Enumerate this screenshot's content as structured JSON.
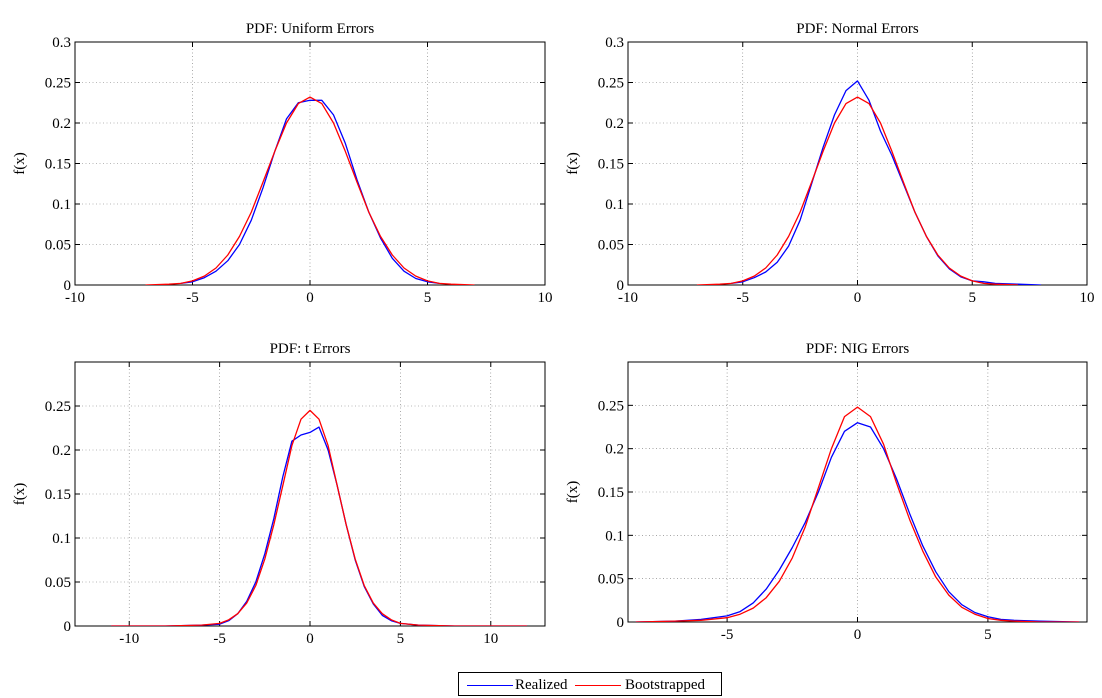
{
  "legend": {
    "items": [
      {
        "label": "Realized",
        "color": "#0000ff"
      },
      {
        "label": "Bootstrapped",
        "color": "#ff0000"
      }
    ]
  },
  "chart_data": [
    {
      "type": "line",
      "title": "PDF: Uniform Errors",
      "ylabel": "f(x)",
      "xlim": [
        -10,
        10
      ],
      "ylim": [
        0,
        0.3
      ],
      "xticks": [
        -10,
        -5,
        0,
        5,
        10
      ],
      "yticks": [
        0,
        0.05,
        0.1,
        0.15,
        0.2,
        0.25,
        0.3
      ],
      "grid": true,
      "series": [
        {
          "name": "Realized",
          "color": "#0000ff",
          "x": [
            -5.5,
            -5,
            -4.5,
            -4,
            -3.5,
            -3,
            -2.5,
            -2,
            -1.5,
            -1,
            -0.5,
            0,
            0.5,
            1,
            1.5,
            2,
            2.5,
            3,
            3.5,
            4,
            4.5,
            5,
            5.5
          ],
          "y": [
            0.002,
            0.004,
            0.009,
            0.017,
            0.03,
            0.05,
            0.08,
            0.12,
            0.165,
            0.205,
            0.225,
            0.228,
            0.228,
            0.21,
            0.175,
            0.13,
            0.09,
            0.058,
            0.033,
            0.017,
            0.008,
            0.004,
            0.002
          ]
        },
        {
          "name": "Bootstrapped",
          "color": "#ff0000",
          "x": [
            -7,
            -6,
            -5.5,
            -5,
            -4.5,
            -4,
            -3.5,
            -3,
            -2.5,
            -2,
            -1.5,
            -1,
            -0.5,
            0,
            0.5,
            1,
            1.5,
            2,
            2.5,
            3,
            3.5,
            4,
            4.5,
            5,
            5.5,
            6,
            7
          ],
          "y": [
            0,
            0.001,
            0.002,
            0.005,
            0.011,
            0.021,
            0.037,
            0.06,
            0.09,
            0.127,
            0.165,
            0.2,
            0.224,
            0.232,
            0.224,
            0.2,
            0.165,
            0.127,
            0.09,
            0.06,
            0.037,
            0.021,
            0.011,
            0.005,
            0.002,
            0.001,
            0
          ]
        }
      ]
    },
    {
      "type": "line",
      "title": "PDF: Normal Errors",
      "ylabel": "f(x)",
      "xlim": [
        -10,
        10
      ],
      "ylim": [
        0,
        0.3
      ],
      "xticks": [
        -10,
        -5,
        0,
        5,
        10
      ],
      "yticks": [
        0,
        0.05,
        0.1,
        0.15,
        0.2,
        0.25,
        0.3
      ],
      "grid": true,
      "series": [
        {
          "name": "Realized",
          "color": "#0000ff",
          "x": [
            -5.5,
            -5,
            -4.5,
            -4,
            -3.5,
            -3,
            -2.5,
            -2,
            -1.5,
            -1,
            -0.5,
            0,
            0.5,
            1,
            1.5,
            2,
            2.5,
            3,
            3.5,
            4,
            4.5,
            5,
            5.5,
            6,
            7,
            8
          ],
          "y": [
            0.002,
            0.004,
            0.009,
            0.016,
            0.028,
            0.048,
            0.08,
            0.125,
            0.17,
            0.21,
            0.24,
            0.252,
            0.228,
            0.19,
            0.16,
            0.125,
            0.09,
            0.06,
            0.036,
            0.02,
            0.01,
            0.005,
            0.004,
            0.002,
            0.001,
            0
          ]
        },
        {
          "name": "Bootstrapped",
          "color": "#ff0000",
          "x": [
            -7,
            -6,
            -5.5,
            -5,
            -4.5,
            -4,
            -3.5,
            -3,
            -2.5,
            -2,
            -1.5,
            -1,
            -0.5,
            0,
            0.5,
            1,
            1.5,
            2,
            2.5,
            3,
            3.5,
            4,
            4.5,
            5,
            5.5,
            6,
            7
          ],
          "y": [
            0,
            0.001,
            0.002,
            0.005,
            0.011,
            0.021,
            0.037,
            0.06,
            0.09,
            0.127,
            0.165,
            0.2,
            0.224,
            0.232,
            0.224,
            0.2,
            0.165,
            0.127,
            0.09,
            0.06,
            0.037,
            0.021,
            0.011,
            0.005,
            0.002,
            0.001,
            0
          ]
        }
      ]
    },
    {
      "type": "line",
      "title": "PDF: t Errors",
      "ylabel": "f(x)",
      "xlim": [
        -13,
        13
      ],
      "ylim": [
        0,
        0.3
      ],
      "xticks": [
        -10,
        -5,
        0,
        5,
        10
      ],
      "yticks": [
        0,
        0.05,
        0.1,
        0.15,
        0.2,
        0.25
      ],
      "grid": true,
      "series": [
        {
          "name": "Realized",
          "color": "#0000ff",
          "x": [
            -11,
            -8,
            -6,
            -5,
            -4.5,
            -4,
            -3.5,
            -3,
            -2.5,
            -2,
            -1.5,
            -1,
            -0.5,
            0,
            0.5,
            1,
            1.5,
            2,
            2.5,
            3,
            3.5,
            4,
            4.5,
            5,
            6,
            8,
            12
          ],
          "y": [
            0,
            0,
            0.001,
            0.002,
            0.006,
            0.014,
            0.028,
            0.05,
            0.082,
            0.122,
            0.17,
            0.21,
            0.217,
            0.22,
            0.226,
            0.2,
            0.16,
            0.115,
            0.075,
            0.045,
            0.025,
            0.012,
            0.006,
            0.003,
            0.001,
            0,
            0
          ]
        },
        {
          "name": "Bootstrapped",
          "color": "#ff0000",
          "x": [
            -11,
            -8,
            -6,
            -5,
            -4.5,
            -4,
            -3.5,
            -3,
            -2.5,
            -2,
            -1.5,
            -1,
            -0.5,
            0,
            0.5,
            1,
            1.5,
            2,
            2.5,
            3,
            3.5,
            4,
            4.5,
            5,
            6,
            8,
            12
          ],
          "y": [
            0,
            0,
            0.001,
            0.003,
            0.007,
            0.014,
            0.026,
            0.046,
            0.076,
            0.115,
            0.16,
            0.205,
            0.235,
            0.245,
            0.235,
            0.205,
            0.16,
            0.115,
            0.076,
            0.046,
            0.026,
            0.014,
            0.007,
            0.003,
            0.001,
            0,
            0
          ]
        }
      ]
    },
    {
      "type": "line",
      "title": "PDF: NIG Errors",
      "ylabel": "f(x)",
      "xlim": [
        -8.8,
        8.8
      ],
      "ylim": [
        0,
        0.3
      ],
      "xticks": [
        -5,
        0,
        5
      ],
      "yticks": [
        0,
        0.05,
        0.1,
        0.15,
        0.2,
        0.25
      ],
      "grid": true,
      "series": [
        {
          "name": "Realized",
          "color": "#0000ff",
          "x": [
            -8.5,
            -7,
            -6,
            -5,
            -4.5,
            -4,
            -3.5,
            -3,
            -2.5,
            -2,
            -1.5,
            -1,
            -0.5,
            0,
            0.5,
            1,
            1.5,
            2,
            2.5,
            3,
            3.5,
            4,
            4.5,
            5,
            5.5,
            6,
            7,
            8.5
          ],
          "y": [
            0,
            0.001,
            0.003,
            0.007,
            0.012,
            0.022,
            0.038,
            0.06,
            0.086,
            0.115,
            0.15,
            0.19,
            0.22,
            0.23,
            0.225,
            0.2,
            0.165,
            0.125,
            0.088,
            0.058,
            0.035,
            0.02,
            0.011,
            0.006,
            0.003,
            0.002,
            0.001,
            0
          ]
        },
        {
          "name": "Bootstrapped",
          "color": "#ff0000",
          "x": [
            -8.5,
            -7,
            -6,
            -5,
            -4.5,
            -4,
            -3.5,
            -3,
            -2.5,
            -2,
            -1.5,
            -1,
            -0.5,
            0,
            0.5,
            1,
            1.5,
            2,
            2.5,
            3,
            3.5,
            4,
            4.5,
            5,
            5.5,
            6,
            7,
            8.5
          ],
          "y": [
            0,
            0.001,
            0.002,
            0.005,
            0.009,
            0.016,
            0.028,
            0.047,
            0.074,
            0.11,
            0.155,
            0.2,
            0.237,
            0.248,
            0.237,
            0.205,
            0.16,
            0.118,
            0.082,
            0.052,
            0.031,
            0.017,
            0.009,
            0.004,
            0.002,
            0.001,
            0,
            0
          ]
        }
      ]
    }
  ]
}
